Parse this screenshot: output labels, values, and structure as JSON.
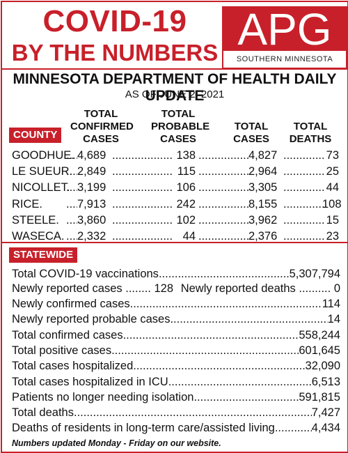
{
  "header": {
    "title_line1": "COVID-19",
    "title_line2": "BY THE NUMBERS",
    "logo_text": "APG",
    "logo_sub": "SOUTHERN MINNESOTA",
    "heading": "MINNESOTA DEPARTMENT OF HEALTH DAILY UPDATE",
    "as_of": "AS OF JUNE 2, 2021"
  },
  "columns": {
    "county": "COUNTY",
    "confirmed": "TOTAL\nCONFIRMED\nCASES",
    "probable": "TOTAL\nPROBABLE\nCASES",
    "total_cases": "TOTAL\nCASES",
    "total_deaths": "TOTAL\nDEATHS"
  },
  "counties": [
    {
      "name": "GOODHUE.",
      "confirmed": "4,689",
      "probable": "138",
      "total": "4,827",
      "deaths": "73"
    },
    {
      "name": "LE SUEUR.",
      "confirmed": "2,849",
      "probable": "115",
      "total": "2,964",
      "deaths": "25"
    },
    {
      "name": "NICOLLET.",
      "confirmed": "3,199",
      "probable": "106",
      "total": "3,305",
      "deaths": "44"
    },
    {
      "name": "RICE.",
      "confirmed": "7,913",
      "probable": "242",
      "total": "8,155",
      "deaths": "108"
    },
    {
      "name": "STEELE.",
      "confirmed": "3,860",
      "probable": "102",
      "total": "3,962",
      "deaths": "15"
    },
    {
      "name": "WASECA.",
      "confirmed": "2,332",
      "probable": "44",
      "total": "2,376",
      "deaths": "23"
    }
  ],
  "statewide": {
    "label": "STATEWIDE",
    "vaccinations": {
      "label": "Total COVID-19 vaccinations",
      "value": "5,307,794"
    },
    "new_cases": {
      "label": "Newly reported cases",
      "value": "128"
    },
    "new_deaths": {
      "label": "Newly reported deaths",
      "value": "0"
    },
    "rows": [
      {
        "label": "Newly confirmed cases",
        "value": "114"
      },
      {
        "label": "Newly reported probable cases.",
        "value": "14"
      },
      {
        "label": "Total confirmed cases",
        "value": "558,244"
      },
      {
        "label": "Total positive cases",
        "value": "601,645"
      },
      {
        "label": "Total cases hospitalized",
        "value": "32,090"
      },
      {
        "label": "Total cases hospitalized in ICU",
        "value": "6,513"
      },
      {
        "label": "Patients no longer needing isolation",
        "value": "591,815"
      },
      {
        "label": "Total deaths.",
        "value": "7,427"
      },
      {
        "label": "Deaths of residents in long-term care/assisted living",
        "value": "4,434"
      }
    ]
  },
  "footnote": "Numbers updated Monday - Friday on our website.",
  "colors": {
    "accent": "#c8202a",
    "text": "#111111"
  }
}
